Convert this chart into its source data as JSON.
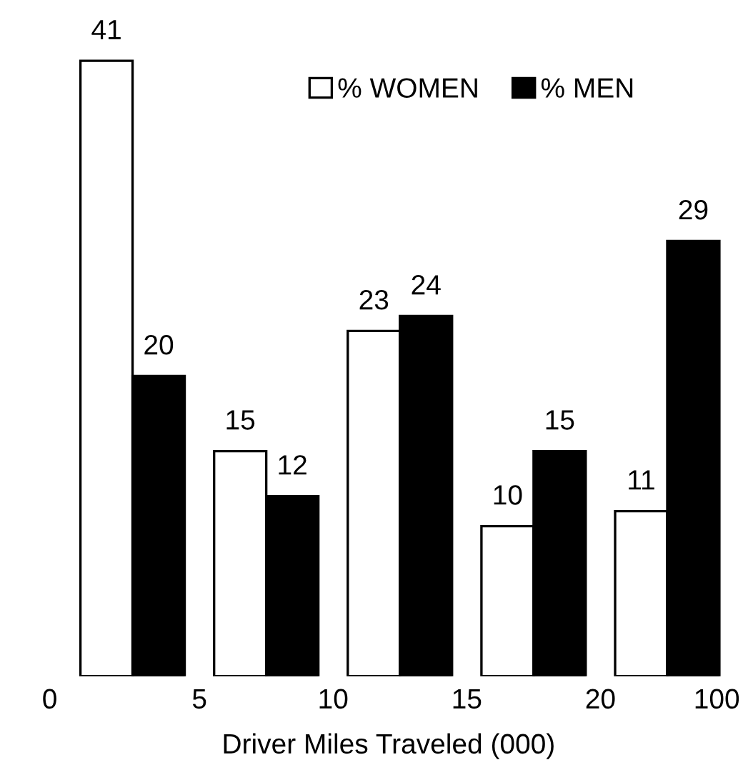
{
  "chart_data": {
    "type": "bar",
    "xlabel": "Driver Miles Traveled (000)",
    "categories": [
      null,
      null,
      null,
      null,
      null
    ],
    "series": [
      {
        "name": "% WOMEN",
        "color": "#ffffff",
        "values": [
          41,
          15,
          23,
          10,
          11
        ]
      },
      {
        "name": "% MEN",
        "color": "#000000",
        "values": [
          20,
          12,
          24,
          15,
          29
        ]
      }
    ],
    "annotations": [
      "0",
      "5",
      "10",
      "15",
      "20",
      "100"
    ],
    "data_labels": true,
    "legend": "top right",
    "grid": false
  }
}
